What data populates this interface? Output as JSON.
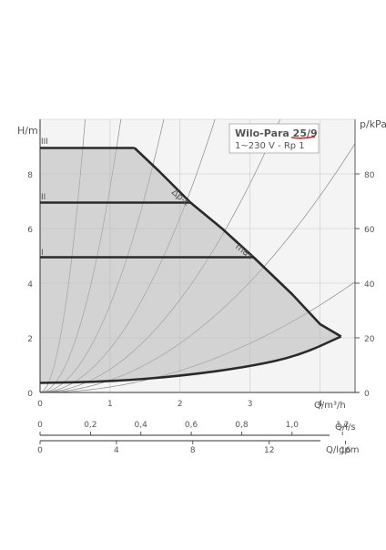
{
  "chart_data": {
    "type": "line",
    "title": "Wilo-Para 25/9",
    "subtitle": "1~230 V - Rp 1",
    "y_left": {
      "label": "H/m",
      "range": [
        0,
        10
      ],
      "ticks": [
        0,
        2,
        4,
        6,
        8
      ]
    },
    "y_right": {
      "label": "p/kPa",
      "range": [
        0,
        100
      ],
      "ticks": [
        0,
        20,
        40,
        60,
        80
      ]
    },
    "x_main": {
      "label": "Q/m³/h",
      "range": [
        0,
        4.5
      ],
      "ticks": [
        0,
        1,
        2,
        3,
        4
      ]
    },
    "x_ls": {
      "label": "Q/l/s",
      "ticks": [
        "0",
        "0,2",
        "0,4",
        "0,6",
        "0,8",
        "1,0",
        "1,2"
      ]
    },
    "x_lgpm": {
      "label": "Q/lgpm",
      "ticks": [
        0,
        4,
        8,
        12,
        16
      ]
    },
    "grid": true,
    "series": [
      {
        "name": "III",
        "points": [
          [
            0,
            8.95
          ],
          [
            1.35,
            8.95
          ]
        ]
      },
      {
        "name": "II",
        "points": [
          [
            0,
            6.95
          ],
          [
            2.15,
            6.95
          ]
        ]
      },
      {
        "name": "I",
        "points": [
          [
            0,
            4.95
          ],
          [
            3.05,
            4.95
          ]
        ]
      },
      {
        "name": "max",
        "points": [
          [
            1.35,
            8.95
          ],
          [
            1.7,
            8.1
          ],
          [
            2.15,
            6.95
          ],
          [
            2.6,
            6.0
          ],
          [
            3.05,
            4.95
          ],
          [
            3.6,
            3.6
          ],
          [
            4.0,
            2.5
          ],
          [
            4.3,
            2.05
          ]
        ]
      },
      {
        "name": "",
        "points": [
          [
            0,
            0.35
          ],
          [
            1.0,
            0.4
          ],
          [
            2.0,
            0.6
          ],
          [
            3.0,
            0.95
          ],
          [
            3.7,
            1.35
          ],
          [
            4.3,
            2.05
          ]
        ]
      }
    ],
    "annotations": [
      "Δp-c",
      "max"
    ]
  }
}
